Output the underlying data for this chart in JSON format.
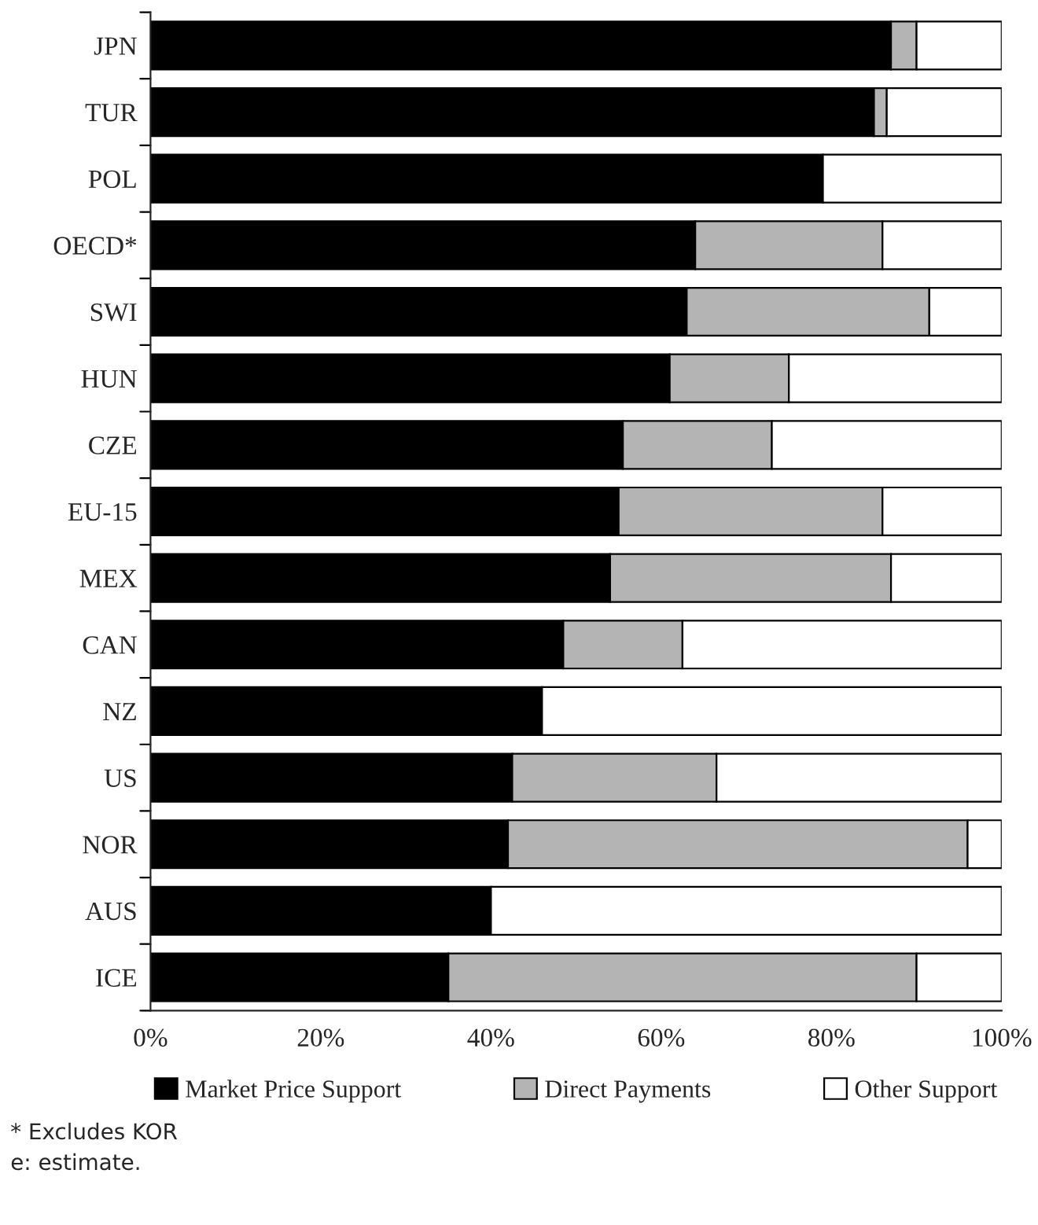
{
  "chart_data": {
    "type": "bar",
    "orientation": "horizontal",
    "stacked": true,
    "categories": [
      "JPN",
      "TUR",
      "POL",
      "OECD*",
      "SWI",
      "HUN",
      "CZE",
      "EU-15",
      "MEX",
      "CAN",
      "NZ",
      "US",
      "NOR",
      "AUS",
      "ICE"
    ],
    "series": [
      {
        "name": "Market Price Support",
        "color": "#000000",
        "values": [
          87,
          85,
          79,
          64,
          63,
          61,
          55.5,
          55,
          54,
          48.5,
          46,
          42.5,
          42,
          40,
          35
        ]
      },
      {
        "name": "Direct Payments",
        "color": "#b4b4b4",
        "values": [
          3,
          1.5,
          0,
          22,
          28.5,
          14,
          17.5,
          31,
          33,
          14,
          0,
          24,
          54,
          0,
          55
        ]
      },
      {
        "name": "Other Support",
        "color": "#ffffff",
        "values": [
          10,
          13.5,
          21,
          14,
          8.5,
          25,
          27,
          14,
          13,
          37.5,
          54,
          33.5,
          4,
          60,
          10
        ]
      }
    ],
    "xlim": [
      0,
      100
    ],
    "xticks": [
      {
        "value": 0,
        "label": "0%"
      },
      {
        "value": 20,
        "label": "20%"
      },
      {
        "value": 40,
        "label": "40%"
      },
      {
        "value": 60,
        "label": "60%"
      },
      {
        "value": 80,
        "label": "80%"
      },
      {
        "value": 100,
        "label": "100%"
      }
    ],
    "legend": "bottom",
    "grid": false,
    "annotations": [
      "* Excludes KOR",
      "e: estimate."
    ]
  }
}
